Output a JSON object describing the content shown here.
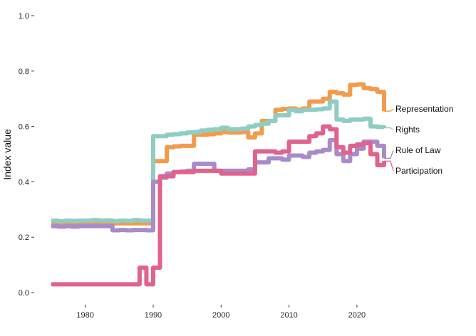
{
  "chart_data": {
    "type": "line",
    "title": "",
    "xlabel": "",
    "ylabel": "Index value",
    "xlim": [
      1975,
      2024
    ],
    "ylim": [
      0,
      1
    ],
    "x_ticks": [
      1980,
      1990,
      2000,
      2010,
      2020
    ],
    "y_ticks": [
      "0.0",
      "0.2",
      "0.4",
      "0.6",
      "0.8",
      "1.0"
    ],
    "y_tick_values": [
      0,
      0.2,
      0.4,
      0.6,
      0.8,
      1.0
    ],
    "grid": false,
    "legend": "direct labels at right end of lines",
    "x": [
      1975,
      1976,
      1977,
      1978,
      1979,
      1980,
      1981,
      1982,
      1983,
      1984,
      1985,
      1986,
      1987,
      1988,
      1989,
      1990,
      1991,
      1992,
      1993,
      1994,
      1995,
      1996,
      1997,
      1998,
      1999,
      2000,
      2001,
      2002,
      2003,
      2004,
      2005,
      2006,
      2007,
      2008,
      2009,
      2010,
      2011,
      2012,
      2013,
      2014,
      2015,
      2016,
      2017,
      2018,
      2019,
      2020,
      2021,
      2022,
      2023,
      2024
    ],
    "series": [
      {
        "name": "Representation",
        "color": "#F39B4C",
        "values": [
          0.25,
          0.25,
          0.25,
          0.25,
          0.25,
          0.25,
          0.25,
          0.25,
          0.25,
          0.25,
          0.25,
          0.25,
          0.25,
          0.25,
          0.25,
          0.475,
          0.475,
          0.525,
          0.528,
          0.53,
          0.53,
          0.57,
          0.57,
          0.572,
          0.575,
          0.58,
          0.578,
          0.578,
          0.58,
          0.56,
          0.575,
          0.62,
          0.62,
          0.66,
          0.663,
          0.665,
          0.66,
          0.665,
          0.69,
          0.69,
          0.7,
          0.725,
          0.72,
          0.715,
          0.75,
          0.752,
          0.738,
          0.735,
          0.725,
          0.655
        ]
      },
      {
        "name": "Rights",
        "color": "#8ECDC3",
        "values": [
          0.26,
          0.258,
          0.26,
          0.259,
          0.26,
          0.26,
          0.262,
          0.26,
          0.261,
          0.258,
          0.26,
          0.259,
          0.262,
          0.26,
          0.26,
          0.565,
          0.565,
          0.57,
          0.572,
          0.575,
          0.578,
          0.58,
          0.585,
          0.588,
          0.59,
          0.595,
          0.59,
          0.59,
          0.592,
          0.6,
          0.605,
          0.61,
          0.62,
          0.64,
          0.64,
          0.66,
          0.655,
          0.66,
          0.66,
          0.662,
          0.665,
          0.69,
          0.625,
          0.62,
          0.625,
          0.625,
          0.628,
          0.6,
          0.598,
          0.595
        ]
      },
      {
        "name": "Rule of Law",
        "color": "#A88BC9",
        "values": [
          0.24,
          0.238,
          0.24,
          0.238,
          0.24,
          0.24,
          0.24,
          0.24,
          0.24,
          0.225,
          0.226,
          0.225,
          0.226,
          0.226,
          0.225,
          0.4,
          0.415,
          0.43,
          0.435,
          0.437,
          0.44,
          0.465,
          0.465,
          0.465,
          0.44,
          0.44,
          0.44,
          0.44,
          0.44,
          0.445,
          0.47,
          0.47,
          0.485,
          0.485,
          0.48,
          0.495,
          0.495,
          0.49,
          0.505,
          0.51,
          0.515,
          0.55,
          0.5,
          0.475,
          0.5,
          0.52,
          0.545,
          0.545,
          0.53,
          0.485
        ]
      },
      {
        "name": "Participation",
        "color": "#E0628F",
        "values": [
          0.03,
          0.03,
          0.03,
          0.03,
          0.03,
          0.03,
          0.03,
          0.03,
          0.03,
          0.03,
          0.03,
          0.03,
          0.03,
          0.09,
          0.03,
          0.09,
          0.42,
          0.42,
          0.435,
          0.435,
          0.435,
          0.44,
          0.44,
          0.44,
          0.44,
          0.43,
          0.43,
          0.43,
          0.43,
          0.43,
          0.51,
          0.51,
          0.51,
          0.505,
          0.51,
          0.545,
          0.545,
          0.545,
          0.565,
          0.575,
          0.6,
          0.59,
          0.525,
          0.505,
          0.53,
          0.535,
          0.54,
          0.5,
          0.46,
          0.475
        ]
      }
    ]
  }
}
